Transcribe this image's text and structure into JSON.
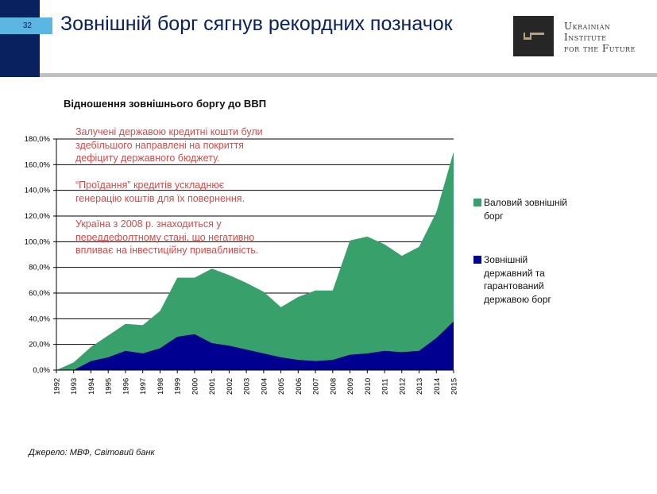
{
  "header": {
    "page_number": "32",
    "title": "Зовнішній борг сягнув рекордних позначок",
    "logo": {
      "lines": [
        "Ukrainian",
        "Institute",
        "for the Future"
      ]
    }
  },
  "notes": [
    [
      "Залучені державою кредитні кошти були",
      "здебільшого направлені на покриття",
      "дефіциту державного бюджету."
    ],
    [
      "“Проїдання” кредитів ускладнює",
      "генерацію коштів для їх повернення."
    ],
    [
      "Україна з 2008 р. знаходиться у",
      "переддефолтному стані, що негативно",
      "впливає на інвестиційну привабливість."
    ]
  ],
  "source": "Джерело: МВФ, Світовий банк",
  "chart_data": {
    "type": "area",
    "title": "Відношення зовнішнього боргу до ВВП",
    "ylim": [
      0,
      180
    ],
    "yticks": [
      "0,0%",
      "20,0%",
      "40,0%",
      "60,0%",
      "80,0%",
      "100,0%",
      "120,0%",
      "140,0%",
      "160,0%",
      "180,0%"
    ],
    "grid": true,
    "legend_position": "right",
    "categories": [
      "1992",
      "1993",
      "1994",
      "1995",
      "1996",
      "1997",
      "1998",
      "1999",
      "2000",
      "2001",
      "2002",
      "2003",
      "2004",
      "2005",
      "2006",
      "2007",
      "2008",
      "2009",
      "2010",
      "2011",
      "2012",
      "2013",
      "2014",
      "2015"
    ],
    "series": [
      {
        "name": "Валовий зовнішній борг",
        "color": "#38a06a",
        "values": [
          0,
          6,
          18,
          27,
          36,
          35,
          46,
          72,
          72,
          79,
          74,
          68,
          61,
          49,
          57,
          62,
          62,
          101,
          104,
          98,
          89,
          96,
          123,
          170
        ]
      },
      {
        "name": "Зовнішній державний та гарантований державою борг",
        "color": "#000090",
        "values": [
          0,
          0,
          7,
          10,
          15,
          13,
          17,
          26,
          28,
          21,
          19,
          16,
          13,
          10,
          8,
          7,
          8,
          12,
          13,
          15,
          14,
          15,
          25,
          38
        ]
      }
    ]
  }
}
